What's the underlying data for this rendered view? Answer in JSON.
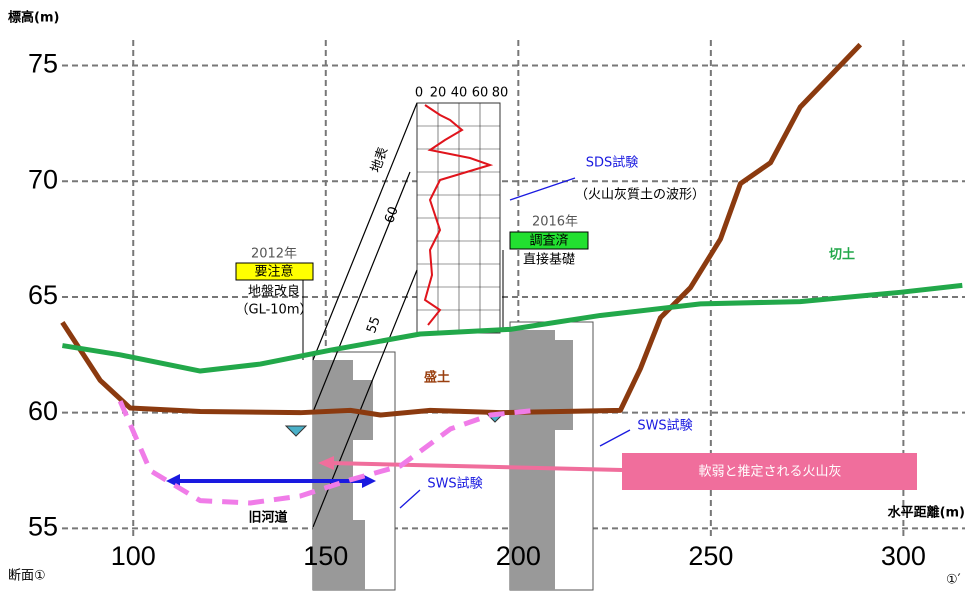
{
  "chart_data": {
    "type": "line",
    "y_label": "標高(m)",
    "x_label": "水平距離(m)",
    "xlim": [
      81.5,
      316
    ],
    "ylim": [
      54.5,
      76.1
    ],
    "xticks": [
      100,
      150,
      200,
      250,
      300
    ],
    "yticks": [
      55,
      60,
      65,
      70,
      75
    ],
    "grid": true,
    "series": [
      {
        "color": "#8b3a0f",
        "x": [
          81.6,
          91.4,
          99.2,
          117.4,
          143.4,
          156.4,
          164.2,
          177.1,
          195.3,
          226.5,
          231.7,
          236.9,
          244.7,
          252.5,
          257.7,
          265.5,
          273.2,
          283.6,
          288.8
        ],
        "values": [
          63.9,
          61.4,
          60.2,
          60.05,
          60,
          60.1,
          59.9,
          60.1,
          60,
          60.1,
          61.9,
          64.1,
          65.4,
          67.5,
          69.9,
          70.8,
          73.2,
          75,
          75.9
        ]
      },
      {
        "color": "#22a84a",
        "x": [
          81.6,
          96.6,
          117.4,
          133,
          151.2,
          174.5,
          197.9,
          221.3,
          247.3,
          273.2,
          299.2,
          315.3
        ],
        "values": [
          62.9,
          62.5,
          61.8,
          62.1,
          62.7,
          63.4,
          63.6,
          64.2,
          64.7,
          64.8,
          65.2,
          65.5
        ]
      },
      {
        "color": "#f07ce8",
        "dashed": true,
        "x": [
          96.6,
          104.4,
          117.4,
          130.4,
          143.4,
          156.4,
          169.4,
          182.4,
          192.8,
          204.5
        ],
        "values": [
          60.5,
          57.5,
          56.2,
          56.1,
          56.4,
          57.1,
          57.7,
          59.3,
          59.9,
          60.1
        ]
      }
    ],
    "annotations": [
      "2012年",
      "要注意",
      "地盤改良",
      "（GL-10m）",
      "2016年",
      "調査済",
      "直接基礎",
      "SDS試験",
      "（火山灰質土の波形）",
      "盛土",
      "切土",
      "SWS試験",
      "SWS試験",
      "軟弱と推定される火山灰",
      "旧河道",
      "断面①",
      "①′",
      "地表",
      "60",
      "55",
      "0",
      "20",
      "40",
      "60",
      "80"
    ]
  }
}
